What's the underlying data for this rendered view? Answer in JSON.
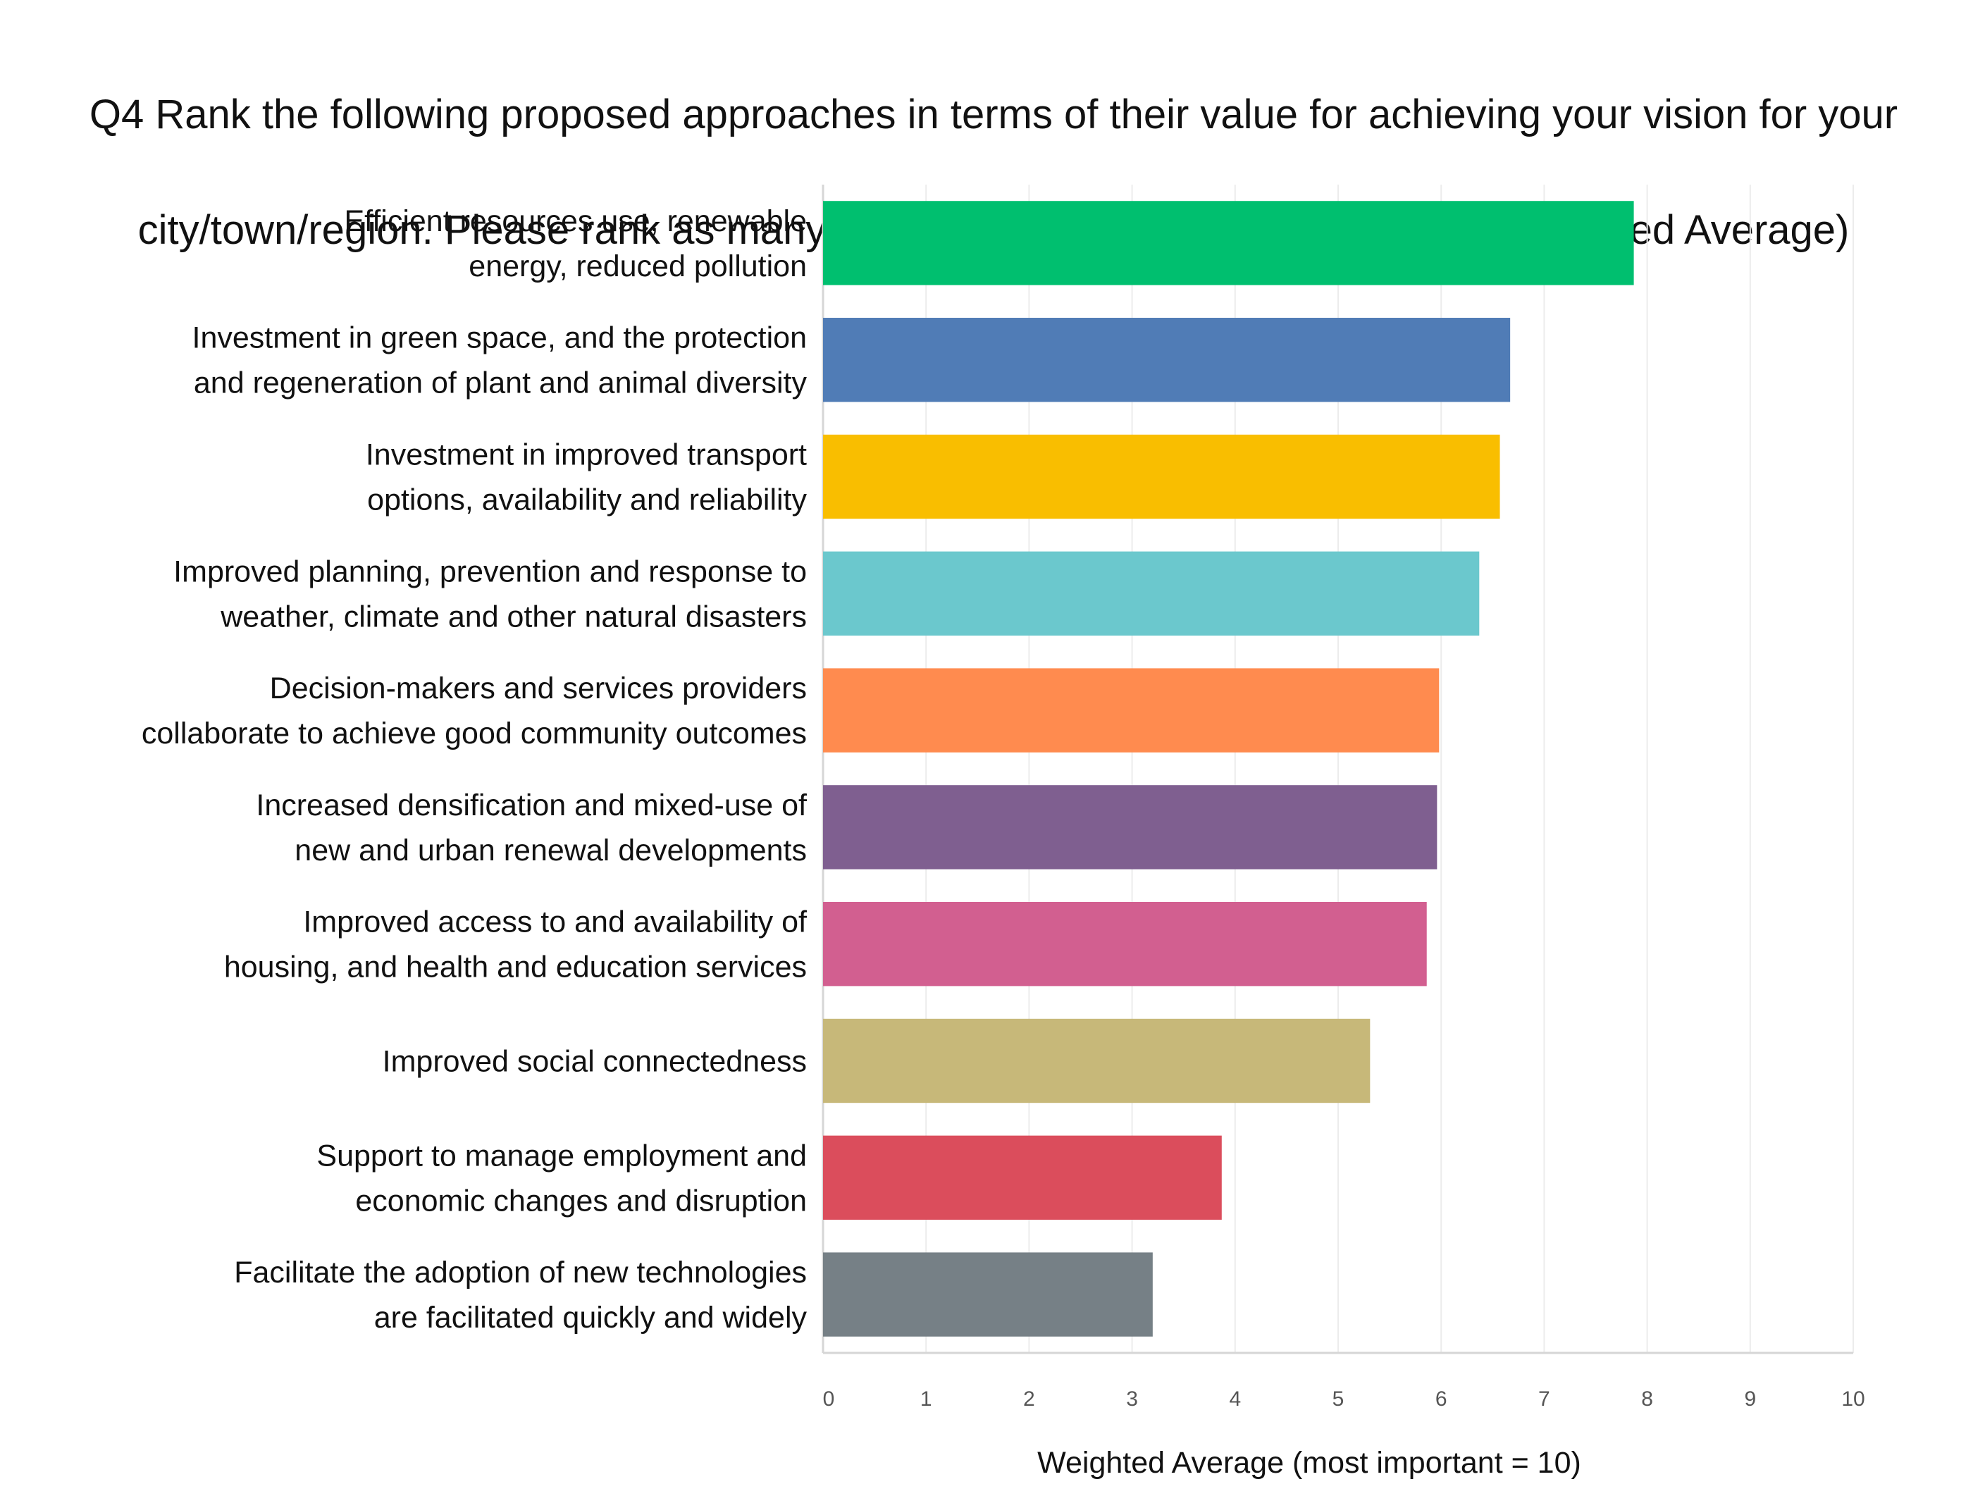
{
  "title_line1": "Q4 Rank the following proposed approaches in terms of their value for achieving your vision for your",
  "title_line2": "city/town/region. Please rank as many of the following options as you wish (Weighted Average)",
  "chart_data": {
    "type": "bar",
    "orientation": "horizontal",
    "title": "Q4 Rank the following proposed approaches in terms of their value for achieving your vision for your city/town/region. Please rank as many of the following options as you wish (Weighted Average)",
    "xlabel": "Weighted Average (most important = 10)",
    "ylabel": "",
    "xlim": [
      0,
      10
    ],
    "xticks": [
      "0",
      "1",
      "2",
      "3",
      "4",
      "5",
      "6",
      "7",
      "8",
      "9",
      "10"
    ],
    "grid": true,
    "categories": [
      [
        "Efficient resources use, renewable",
        "energy, reduced pollution"
      ],
      [
        "Investment in green space, and the protection",
        "and regeneration of plant and animal diversity"
      ],
      [
        "Investment in improved transport",
        "options, availability and reliability"
      ],
      [
        "Improved planning, prevention and response to",
        "weather, climate  and other natural disasters"
      ],
      [
        "Decision-makers and services providers",
        "collaborate to achieve good community outcomes"
      ],
      [
        "Increased densification and mixed-use of",
        "new and urban renewal developments"
      ],
      [
        "Improved access to and availability of",
        "housing, and health and education services"
      ],
      [
        "Improved social connectedness"
      ],
      [
        "Support to manage employment and",
        "economic changes and disruption"
      ],
      [
        "Facilitate the adoption of new technologies",
        "are facilitated quickly and widely"
      ]
    ],
    "values": [
      7.87,
      6.67,
      6.57,
      6.37,
      5.98,
      5.96,
      5.86,
      5.31,
      3.87,
      3.2
    ],
    "colors": [
      "#00bf6f",
      "#507cb6",
      "#f9be00",
      "#6bc8cd",
      "#ff8b4f",
      "#7f5f90",
      "#d25f90",
      "#c7b879",
      "#db4d5c",
      "#768086"
    ]
  }
}
